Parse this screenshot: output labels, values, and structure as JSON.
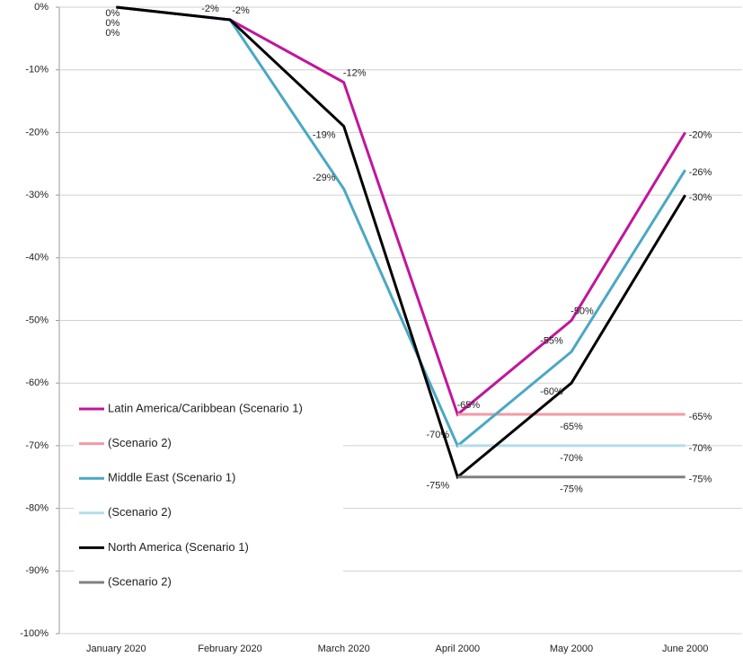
{
  "chart_data": {
    "type": "line",
    "categories": [
      "January 2020",
      "February 2020",
      "March 2020",
      "April 2000",
      "May 2000",
      "June 2000"
    ],
    "series": [
      {
        "name": "Latin America/Caribbean (Scenario 1)",
        "color": "#c0169c",
        "values": [
          0,
          -2,
          -12,
          -65,
          -50,
          -20
        ],
        "value_labels": [
          "0%",
          "-2%",
          "-12%",
          "-65%",
          "-50%",
          "-20%"
        ]
      },
      {
        "name": "(Scenario 2)",
        "color": "#f29aa4",
        "values": [
          null,
          null,
          null,
          -65,
          -65,
          -65
        ],
        "value_labels": [
          null,
          null,
          null,
          null,
          "-65%",
          "-65%"
        ]
      },
      {
        "name": "Middle East (Scenario 1)",
        "color": "#4aa8c4",
        "values": [
          0,
          -2,
          -29,
          -70,
          -55,
          -26
        ],
        "value_labels": [
          "0%",
          "-2%",
          "-29%",
          "-70%",
          "-55%",
          "-26%"
        ]
      },
      {
        "name": "(Scenario 2)",
        "color": "#b5dcea",
        "values": [
          null,
          null,
          null,
          -70,
          -70,
          -70
        ],
        "value_labels": [
          null,
          null,
          null,
          null,
          "-70%",
          "-70%"
        ]
      },
      {
        "name": "North America (Scenario 1)",
        "color": "#000000",
        "values": [
          0,
          -2,
          -19,
          -75,
          -60,
          -30
        ],
        "value_labels": [
          "0%",
          null,
          "-19%",
          "-75%",
          "-60%",
          "-30%"
        ]
      },
      {
        "name": "(Scenario 2)",
        "color": "#808080",
        "values": [
          null,
          null,
          null,
          -75,
          -75,
          -75
        ],
        "value_labels": [
          null,
          null,
          null,
          null,
          "-75%",
          "-75%"
        ]
      }
    ],
    "ylim": [
      -100,
      0
    ],
    "yticks": [
      {
        "value": 0,
        "label": "0%"
      },
      {
        "value": -10,
        "label": "-10%"
      },
      {
        "value": -20,
        "label": "-20%"
      },
      {
        "value": -30,
        "label": "-30%"
      },
      {
        "value": -40,
        "label": "-40%"
      },
      {
        "value": -50,
        "label": "-50%"
      },
      {
        "value": -60,
        "label": "-60%"
      },
      {
        "value": -70,
        "label": "-70%"
      },
      {
        "value": -80,
        "label": "-80%"
      },
      {
        "value": -90,
        "label": "-90%"
      },
      {
        "value": -100,
        "label": "-100%"
      }
    ],
    "grid": true,
    "legend": "left"
  }
}
